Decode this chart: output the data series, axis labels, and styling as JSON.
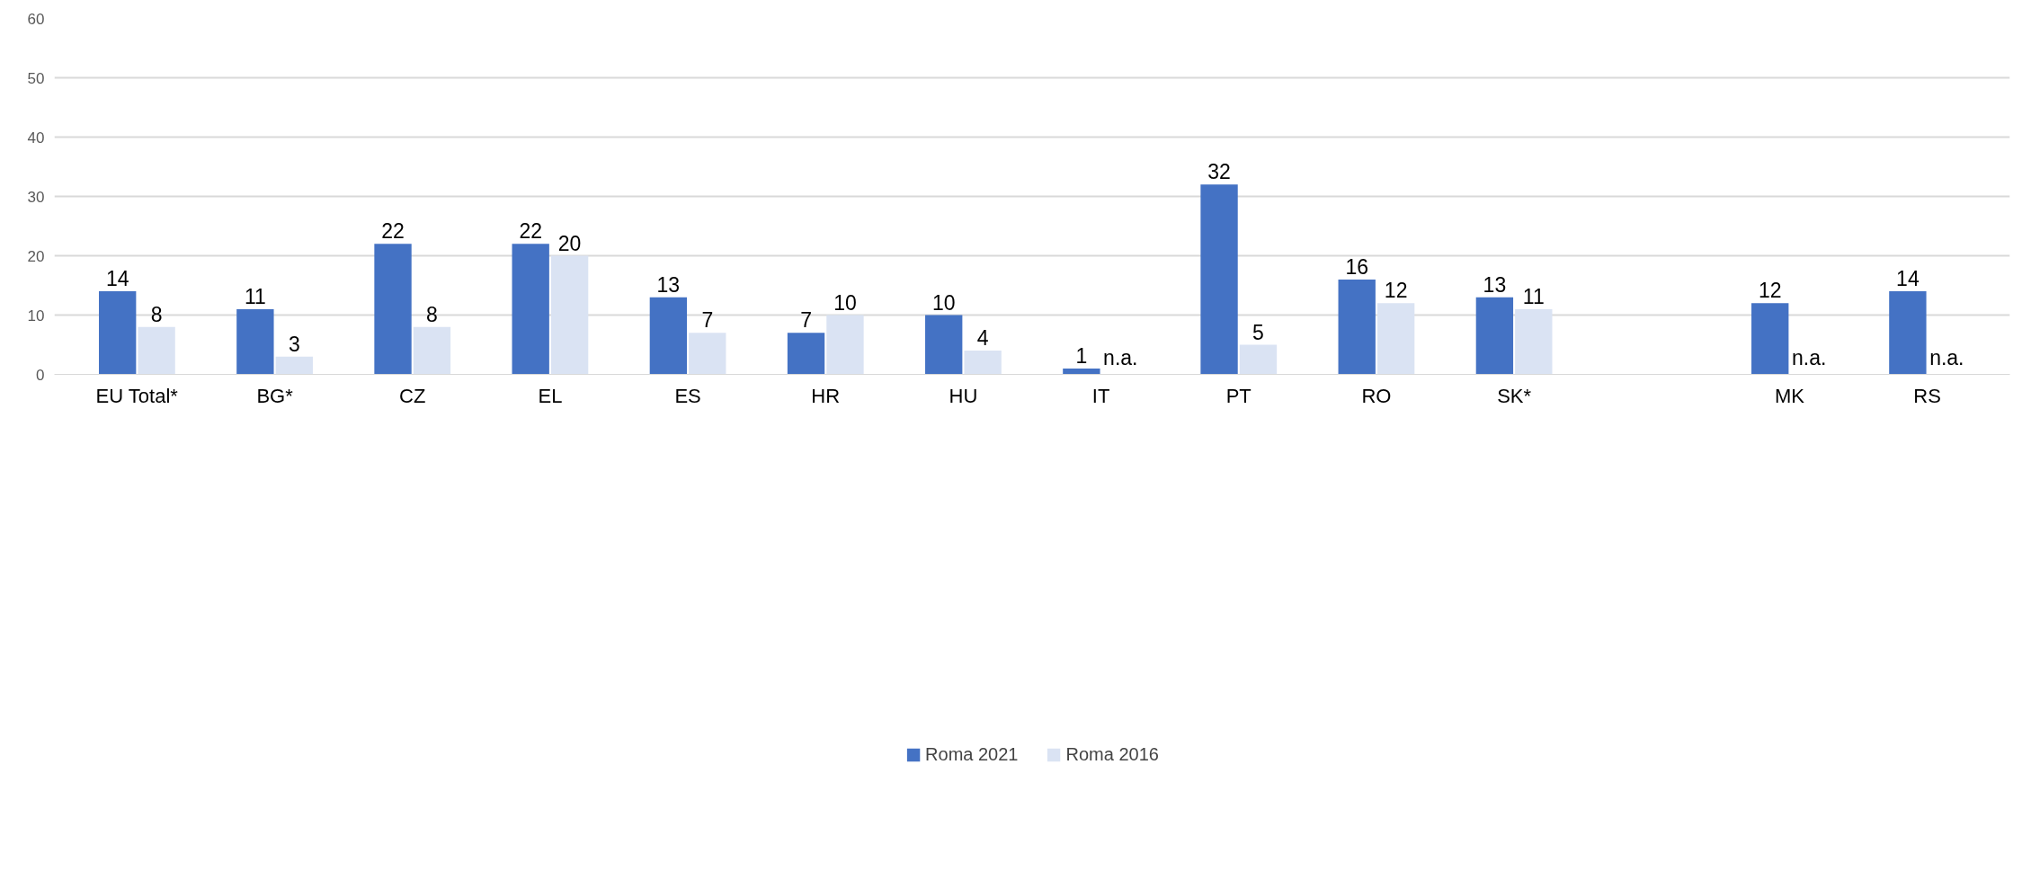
{
  "chart_data": {
    "type": "bar",
    "categories": [
      "EU Total*",
      "BG*",
      "CZ",
      "EL",
      "ES",
      "HR",
      "HU",
      "IT",
      "PT",
      "RO",
      "SK*",
      null,
      "MK",
      "RS"
    ],
    "series": [
      {
        "name": "Roma 2021",
        "color": "#4472c4",
        "values": [
          14,
          11,
          22,
          22,
          13,
          7,
          10,
          1,
          32,
          16,
          13,
          null,
          12,
          14
        ],
        "value_labels": [
          "14",
          "11",
          "22",
          "22",
          "13",
          "7",
          "10",
          "1",
          "32",
          "16",
          "13",
          null,
          "12",
          "14"
        ]
      },
      {
        "name": "Roma 2016",
        "color": "#dae3f3",
        "values": [
          8,
          3,
          8,
          20,
          7,
          10,
          4,
          null,
          5,
          12,
          11,
          null,
          null,
          null
        ],
        "value_labels": [
          "8",
          "3",
          "8",
          "20",
          "7",
          "10",
          "4",
          "n.a.",
          "5",
          "12",
          "11",
          null,
          "n.a.",
          "n.a."
        ]
      }
    ],
    "ylim": [
      0,
      60
    ],
    "yticks": [
      0,
      10,
      20,
      30,
      40,
      50,
      60
    ],
    "grid": "y",
    "legend": "bottom"
  }
}
